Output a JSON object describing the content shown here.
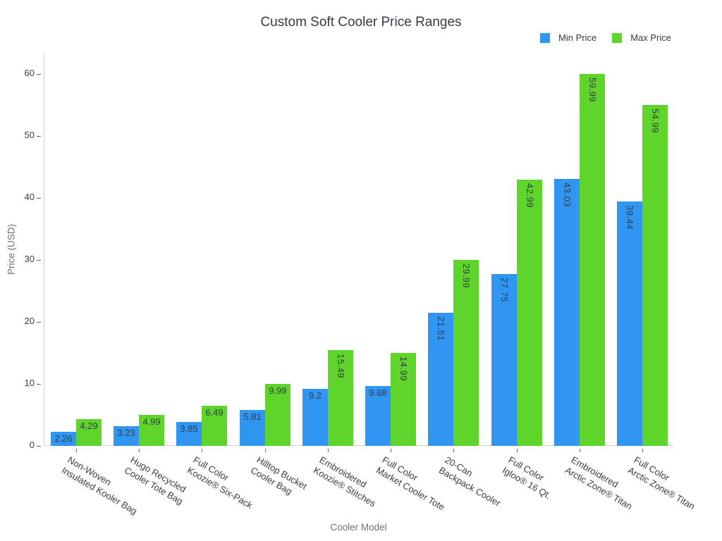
{
  "chart_data": {
    "type": "bar",
    "title": "Custom Soft Cooler Price Ranges",
    "xlabel": "Cooler Model",
    "ylabel": "Price (USD)",
    "ylim": [
      0,
      60
    ],
    "ytick_step": 10,
    "grid": false,
    "legend_position": "top-right",
    "bar_value_labels": true,
    "categories": [
      "Non-Woven\nInsulated Kooler Bag",
      "Hugo Recycled\nCooler Tote Bag",
      "Full Color\nKoozie® Six-Pack",
      "Hilltop Bucket\nCooler Bag",
      "Embroidered\nKoozie® Stitches",
      "Full Color\nMarket Cooler Tote",
      "20-Can\nBackpack Cooler",
      "Full Color\nIgloo® 16 Qt.",
      "Embroidered\nArctic Zone® Titan",
      "Full Color\nArctic Zone® Titan"
    ],
    "series": [
      {
        "name": "Min Price",
        "color": "#3195f2",
        "values": [
          2.26,
          3.23,
          3.85,
          5.81,
          9.2,
          9.68,
          21.51,
          27.75,
          43.03,
          39.44
        ]
      },
      {
        "name": "Max Price",
        "color": "#5fd52c",
        "values": [
          4.29,
          4.99,
          6.49,
          9.99,
          15.49,
          14.99,
          29.99,
          42.99,
          59.99,
          54.99
        ]
      }
    ]
  }
}
